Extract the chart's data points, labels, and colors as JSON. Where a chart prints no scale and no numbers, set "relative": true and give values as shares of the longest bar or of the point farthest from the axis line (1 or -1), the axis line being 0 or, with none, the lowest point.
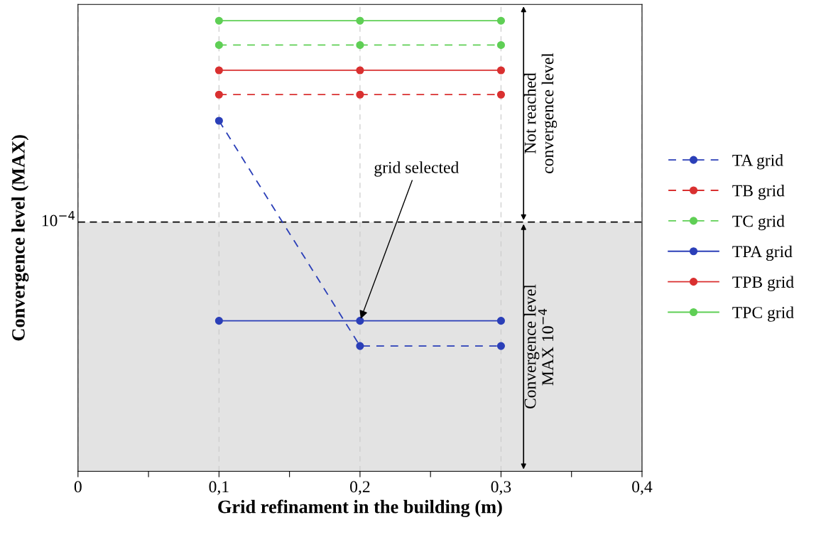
{
  "chart_data": {
    "type": "line",
    "relative": true,
    "xlabel": "Grid refinament in the building (m)",
    "ylabel": "Convergence level (MAX)",
    "x": [
      0.1,
      0.2,
      0.3
    ],
    "xlim": [
      0,
      0.4
    ],
    "xticks": [
      {
        "value": 0,
        "label": "0"
      },
      {
        "value": 0.05,
        "label": null
      },
      {
        "value": 0.1,
        "label": "0,1"
      },
      {
        "value": 0.15,
        "label": null
      },
      {
        "value": 0.2,
        "label": "0,2"
      },
      {
        "value": 0.25,
        "label": null
      },
      {
        "value": 0.3,
        "label": "0,3"
      },
      {
        "value": 0.35,
        "label": null
      },
      {
        "value": 0.4,
        "label": "0,4"
      }
    ],
    "series": [
      {
        "name": "TA grid",
        "color": "#2b3fb8",
        "line_style": "dashed",
        "values": [
          0.778,
          0.278,
          0.278
        ]
      },
      {
        "name": "TB grid",
        "color": "#d93030",
        "line_style": "dashed",
        "values": [
          0.836,
          0.836,
          0.836
        ]
      },
      {
        "name": "TC grid",
        "color": "#5fcf55",
        "line_style": "dashed",
        "values": [
          0.946,
          0.946,
          0.946
        ]
      },
      {
        "name": "TPA grid",
        "color": "#2b3fb8",
        "line_style": "solid",
        "values": [
          0.334,
          0.334,
          0.334
        ]
      },
      {
        "name": "TPB grid",
        "color": "#d93030",
        "line_style": "solid",
        "values": [
          0.89,
          0.89,
          0.89
        ]
      },
      {
        "name": "TPC grid",
        "color": "#5fcf55",
        "line_style": "solid",
        "values": [
          1,
          1,
          1
        ]
      }
    ],
    "marker": "circle",
    "grid": "x",
    "legend": "right",
    "tick_labels": "x",
    "ref_lines": [
      {
        "axis": "y",
        "value": 0.553,
        "label": "10$^{−4}$",
        "color": "#000000",
        "line_style": "dashed"
      }
    ],
    "bands": [
      {
        "axis": "y",
        "from": 0,
        "to": 0.553,
        "label": "Convergence level\nMAX 10$^{−4}$",
        "color": "#e3e3e3"
      }
    ],
    "annotations": [
      "Not reached\nconvergence level",
      {
        "text": "grid selected",
        "x": 0.2,
        "y": 0.334
      }
    ]
  }
}
